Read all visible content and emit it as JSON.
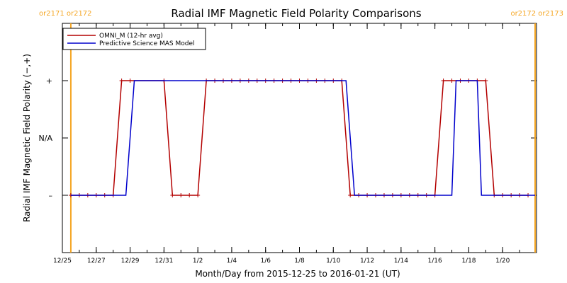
{
  "chart_data": {
    "type": "line",
    "title": "Radial IMF Magnetic Field Polarity Comparisons",
    "xlabel": "Month/Day from 2015-12-25 to 2016-01-21 (UT)",
    "ylabel": "Radial IMF Magnetic Field Polarity (−,+)",
    "xlim": [
      "2015-12-25",
      "2016-01-22"
    ],
    "ylim": [
      -2,
      2
    ],
    "x_ticks": [
      {
        "date": "2015-12-25",
        "label": "12/25"
      },
      {
        "date": "2015-12-27",
        "label": "12/27"
      },
      {
        "date": "2015-12-29",
        "label": "12/29"
      },
      {
        "date": "2015-12-31",
        "label": "12/31"
      },
      {
        "date": "2016-01-02",
        "label": "1/2"
      },
      {
        "date": "2016-01-04",
        "label": "1/4"
      },
      {
        "date": "2016-01-06",
        "label": "1/6"
      },
      {
        "date": "2016-01-08",
        "label": "1/8"
      },
      {
        "date": "2016-01-10",
        "label": "1/10"
      },
      {
        "date": "2016-01-12",
        "label": "1/12"
      },
      {
        "date": "2016-01-14",
        "label": "1/14"
      },
      {
        "date": "2016-01-16",
        "label": "1/16"
      },
      {
        "date": "2016-01-18",
        "label": "1/18"
      },
      {
        "date": "2016-01-20",
        "label": "1/20"
      }
    ],
    "y_ticks": [
      {
        "value": 1,
        "label": "+"
      },
      {
        "value": 0,
        "label": "N/A"
      },
      {
        "value": -1,
        "label": "–"
      }
    ],
    "carrington_markers": [
      {
        "date": "2015-12-25 12:00",
        "label": "or2171 or2172",
        "side": "left"
      },
      {
        "date": "2016-01-21 22:00",
        "label": "or2172 or2173",
        "side": "right"
      }
    ],
    "legend_position": "top-left",
    "series": [
      {
        "name": "OMNI_M (12-hr avg)",
        "color": "#b30000",
        "markers": true,
        "points": [
          [
            "2015-12-25 12:00",
            -1
          ],
          [
            "2015-12-26 00:00",
            -1
          ],
          [
            "2015-12-26 12:00",
            -1
          ],
          [
            "2015-12-27 00:00",
            -1
          ],
          [
            "2015-12-27 12:00",
            -1
          ],
          [
            "2015-12-28 00:00",
            -1
          ],
          [
            "2015-12-28 12:00",
            1
          ],
          [
            "2015-12-29 00:00",
            1
          ],
          [
            "2015-12-31 00:00",
            1
          ],
          [
            "2015-12-31 12:00",
            -1
          ],
          [
            "2016-01-01 00:00",
            -1
          ],
          [
            "2016-01-01 12:00",
            -1
          ],
          [
            "2016-01-02 00:00",
            -1
          ],
          [
            "2016-01-02 12:00",
            1
          ],
          [
            "2016-01-03 00:00",
            1
          ],
          [
            "2016-01-03 12:00",
            1
          ],
          [
            "2016-01-04 00:00",
            1
          ],
          [
            "2016-01-04 12:00",
            1
          ],
          [
            "2016-01-05 00:00",
            1
          ],
          [
            "2016-01-05 12:00",
            1
          ],
          [
            "2016-01-06 00:00",
            1
          ],
          [
            "2016-01-06 12:00",
            1
          ],
          [
            "2016-01-07 00:00",
            1
          ],
          [
            "2016-01-07 12:00",
            1
          ],
          [
            "2016-01-08 00:00",
            1
          ],
          [
            "2016-01-08 12:00",
            1
          ],
          [
            "2016-01-09 00:00",
            1
          ],
          [
            "2016-01-09 12:00",
            1
          ],
          [
            "2016-01-10 00:00",
            1
          ],
          [
            "2016-01-10 12:00",
            1
          ],
          [
            "2016-01-11 00:00",
            -1
          ],
          [
            "2016-01-11 12:00",
            -1
          ],
          [
            "2016-01-12 00:00",
            -1
          ],
          [
            "2016-01-12 12:00",
            -1
          ],
          [
            "2016-01-13 00:00",
            -1
          ],
          [
            "2016-01-13 12:00",
            -1
          ],
          [
            "2016-01-14 00:00",
            -1
          ],
          [
            "2016-01-14 12:00",
            -1
          ],
          [
            "2016-01-15 00:00",
            -1
          ],
          [
            "2016-01-15 12:00",
            -1
          ],
          [
            "2016-01-16 00:00",
            -1
          ],
          [
            "2016-01-16 12:00",
            1
          ],
          [
            "2016-01-17 00:00",
            1
          ],
          [
            "2016-01-17 12:00",
            1
          ],
          [
            "2016-01-18 00:00",
            1
          ],
          [
            "2016-01-18 12:00",
            1
          ],
          [
            "2016-01-19 00:00",
            1
          ],
          [
            "2016-01-19 12:00",
            -1
          ],
          [
            "2016-01-20 00:00",
            -1
          ],
          [
            "2016-01-20 12:00",
            -1
          ],
          [
            "2016-01-21 00:00",
            -1
          ],
          [
            "2016-01-21 12:00",
            -1
          ]
        ]
      },
      {
        "name": "Predictive Science MAS Model",
        "color": "#0000cc",
        "markers": false,
        "points": [
          [
            "2015-12-25 12:00",
            -1
          ],
          [
            "2015-12-28 18:00",
            -1
          ],
          [
            "2015-12-29 06:00",
            1
          ],
          [
            "2016-01-10 18:00",
            1
          ],
          [
            "2016-01-11 06:00",
            -1
          ],
          [
            "2016-01-17 00:00",
            -1
          ],
          [
            "2016-01-17 06:00",
            1
          ],
          [
            "2016-01-18 12:00",
            1
          ],
          [
            "2016-01-18 18:00",
            -1
          ],
          [
            "2016-01-21 22:00",
            -1
          ]
        ]
      }
    ]
  }
}
